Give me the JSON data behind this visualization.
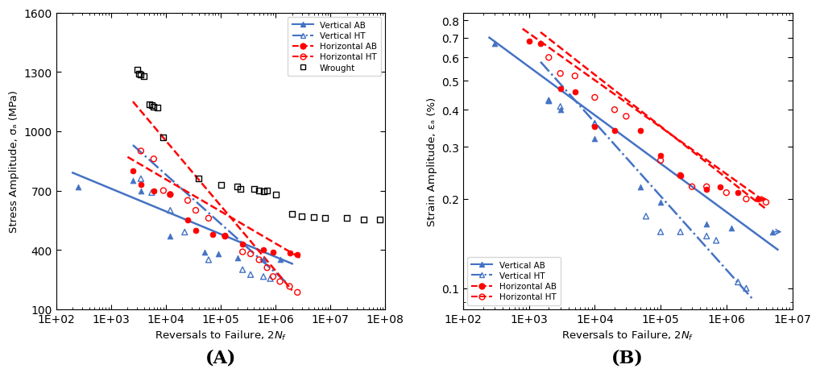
{
  "panel_A": {
    "title": "(A)",
    "xlabel": "Reversals to Failure, 2$N_f$",
    "ylabel": "Stress Amplitude, σₐ (MPa)",
    "xlim": [
      100.0,
      100000000.0
    ],
    "ylim": [
      100,
      1600
    ],
    "yticks": [
      100,
      400,
      700,
      1000,
      1300,
      1600
    ],
    "vert_AB_scatter": [
      [
        250,
        720
      ],
      [
        2500,
        750
      ],
      [
        3500,
        700
      ],
      [
        12000,
        470
      ],
      [
        50000,
        390
      ],
      [
        90000,
        380
      ],
      [
        200000,
        360
      ],
      [
        600000,
        350
      ],
      [
        1200000,
        350
      ]
    ],
    "vert_HT_scatter": [
      [
        3500,
        760
      ],
      [
        5500,
        690
      ],
      [
        12000,
        600
      ],
      [
        22000,
        490
      ],
      [
        60000,
        350
      ],
      [
        250000,
        300
      ],
      [
        350000,
        275
      ],
      [
        600000,
        265
      ],
      [
        800000,
        255
      ]
    ],
    "horiz_AB_scatter": [
      [
        2500,
        800
      ],
      [
        3500,
        730
      ],
      [
        6000,
        700
      ],
      [
        12000,
        680
      ],
      [
        25000,
        550
      ],
      [
        35000,
        500
      ],
      [
        70000,
        480
      ],
      [
        120000,
        470
      ],
      [
        250000,
        430
      ],
      [
        600000,
        400
      ],
      [
        900000,
        390
      ],
      [
        1800000,
        385
      ],
      [
        2500000,
        375
      ]
    ],
    "horiz_HT_scatter": [
      [
        3500,
        900
      ],
      [
        6000,
        860
      ],
      [
        9000,
        700
      ],
      [
        12000,
        680
      ],
      [
        25000,
        650
      ],
      [
        35000,
        600
      ],
      [
        60000,
        560
      ],
      [
        120000,
        470
      ],
      [
        250000,
        390
      ],
      [
        350000,
        380
      ],
      [
        500000,
        350
      ],
      [
        700000,
        310
      ],
      [
        900000,
        265
      ],
      [
        1200000,
        240
      ],
      [
        1800000,
        215
      ],
      [
        2500000,
        185
      ]
    ],
    "wrought_scatter": [
      [
        3000,
        1310
      ],
      [
        3200,
        1290
      ],
      [
        3500,
        1285
      ],
      [
        4000,
        1280
      ],
      [
        5000,
        1135
      ],
      [
        5500,
        1130
      ],
      [
        6000,
        1125
      ],
      [
        7000,
        1120
      ],
      [
        9000,
        970
      ],
      [
        40000,
        760
      ],
      [
        100000,
        730
      ],
      [
        200000,
        720
      ],
      [
        230000,
        710
      ],
      [
        400000,
        710
      ],
      [
        500000,
        700
      ],
      [
        600000,
        695
      ],
      [
        700000,
        700
      ],
      [
        1000000,
        680
      ],
      [
        2000000,
        580
      ],
      [
        3000000,
        570
      ],
      [
        5000000,
        565
      ],
      [
        8000000,
        560
      ],
      [
        20000000,
        560
      ],
      [
        40000000,
        555
      ],
      [
        80000000,
        555
      ]
    ],
    "vert_AB_line": [
      [
        200,
        790
      ],
      [
        2000000,
        330
      ]
    ],
    "vert_HT_line": [
      [
        2500,
        930
      ],
      [
        1500000,
        240
      ]
    ],
    "horiz_AB_line": [
      [
        2000,
        870
      ],
      [
        3000000,
        355
      ]
    ],
    "horiz_HT_line": [
      [
        2500,
        1150
      ],
      [
        2000000,
        195
      ]
    ]
  },
  "panel_B": {
    "title": "(B)",
    "xlabel": "Reversals to Failure, 2$N_f$",
    "ylabel": "Strain Amplitude, εₐ (%)",
    "xlim": [
      100.0,
      10000000.0
    ],
    "ylim": [
      0.085,
      0.85
    ],
    "yticks": [
      0.1,
      0.2,
      0.3,
      0.4,
      0.5,
      0.6,
      0.7,
      0.8
    ],
    "vert_AB_scatter": [
      [
        300,
        0.67
      ],
      [
        2000,
        0.43
      ],
      [
        3000,
        0.4
      ],
      [
        10000,
        0.32
      ],
      [
        50000,
        0.22
      ],
      [
        100000,
        0.195
      ],
      [
        500000,
        0.165
      ],
      [
        1200000,
        0.16
      ],
      [
        5000000,
        0.155
      ]
    ],
    "vert_HT_scatter": [
      [
        2000,
        0.43
      ],
      [
        3000,
        0.41
      ],
      [
        10000,
        0.36
      ],
      [
        60000,
        0.175
      ],
      [
        100000,
        0.155
      ],
      [
        200000,
        0.155
      ],
      [
        500000,
        0.15
      ],
      [
        700000,
        0.145
      ],
      [
        1500000,
        0.105
      ],
      [
        2000000,
        0.1
      ]
    ],
    "horiz_AB_scatter": [
      [
        1000,
        0.68
      ],
      [
        1500,
        0.67
      ],
      [
        3000,
        0.47
      ],
      [
        5000,
        0.46
      ],
      [
        10000,
        0.35
      ],
      [
        20000,
        0.34
      ],
      [
        50000,
        0.34
      ],
      [
        100000,
        0.28
      ],
      [
        200000,
        0.24
      ],
      [
        500000,
        0.215
      ],
      [
        800000,
        0.22
      ],
      [
        1500000,
        0.21
      ],
      [
        3000000,
        0.2
      ]
    ],
    "horiz_HT_scatter": [
      [
        2000,
        0.6
      ],
      [
        3000,
        0.53
      ],
      [
        5000,
        0.52
      ],
      [
        10000,
        0.44
      ],
      [
        20000,
        0.4
      ],
      [
        30000,
        0.38
      ],
      [
        100000,
        0.27
      ],
      [
        200000,
        0.24
      ],
      [
        300000,
        0.22
      ],
      [
        500000,
        0.22
      ],
      [
        1000000,
        0.21
      ],
      [
        2000000,
        0.2
      ],
      [
        4000000,
        0.195
      ]
    ],
    "vert_AB_runout": [
      [
        5000000,
        0.155
      ]
    ],
    "horiz_AB_runout": [
      [
        3000000,
        0.2
      ]
    ],
    "vert_AB_line": [
      [
        250,
        0.7
      ],
      [
        6000000,
        0.135
      ]
    ],
    "vert_HT_line": [
      [
        1500,
        0.58
      ],
      [
        2500000,
        0.092
      ]
    ],
    "horiz_AB_line": [
      [
        800,
        0.75
      ],
      [
        4000000,
        0.195
      ]
    ],
    "horiz_HT_line": [
      [
        1500,
        0.73
      ],
      [
        4000000,
        0.185
      ]
    ]
  },
  "colors": {
    "blue": "#4472C4",
    "red": "#FF0000"
  }
}
